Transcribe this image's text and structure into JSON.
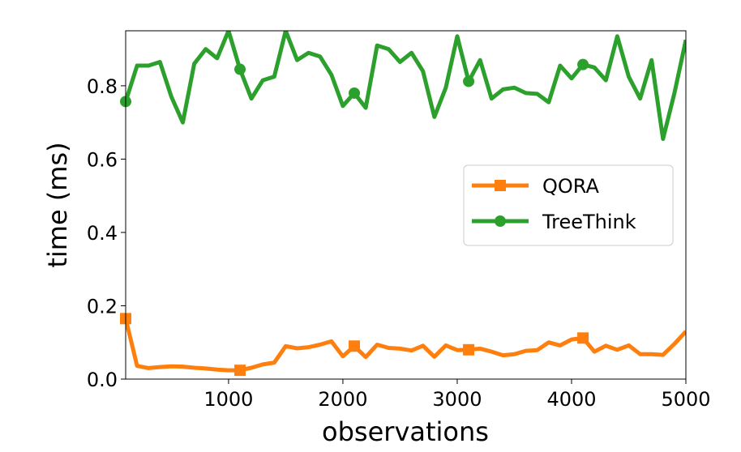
{
  "chart_data": {
    "type": "line",
    "xlabel": "observations",
    "ylabel": "time (ms)",
    "xlim": [
      100,
      5000
    ],
    "ylim": [
      0.0,
      0.95
    ],
    "xticks": [
      1000,
      2000,
      3000,
      4000,
      5000
    ],
    "xtick_labels": [
      "1000",
      "2000",
      "3000",
      "4000",
      "5000"
    ],
    "yticks": [
      0.0,
      0.2,
      0.4,
      0.6,
      0.8
    ],
    "ytick_labels": [
      "0.0",
      "0.2",
      "0.4",
      "0.6",
      "0.8"
    ],
    "grid": false,
    "legend_position": "center-right",
    "x": [
      100,
      200,
      300,
      400,
      500,
      600,
      700,
      800,
      900,
      1000,
      1100,
      1200,
      1300,
      1400,
      1500,
      1600,
      1700,
      1800,
      1900,
      2000,
      2100,
      2200,
      2300,
      2400,
      2500,
      2600,
      2700,
      2800,
      2900,
      3000,
      3100,
      3200,
      3300,
      3400,
      3500,
      3600,
      3700,
      3800,
      3900,
      4000,
      4100,
      4200,
      4300,
      4400,
      4500,
      4600,
      4700,
      4800,
      4900,
      5000
    ],
    "series": [
      {
        "name": "QORA",
        "color": "#ff7f0e",
        "marker": "square",
        "marker_every": 10,
        "values": [
          0.165,
          0.036,
          0.03,
          0.033,
          0.035,
          0.034,
          0.031,
          0.029,
          0.026,
          0.024,
          0.024,
          0.031,
          0.04,
          0.045,
          0.09,
          0.084,
          0.087,
          0.094,
          0.103,
          0.062,
          0.09,
          0.06,
          0.094,
          0.085,
          0.083,
          0.078,
          0.091,
          0.061,
          0.092,
          0.079,
          0.08,
          0.083,
          0.075,
          0.065,
          0.068,
          0.077,
          0.079,
          0.1,
          0.092,
          0.108,
          0.112,
          0.075,
          0.091,
          0.08,
          0.092,
          0.068,
          0.068,
          0.066,
          0.096,
          0.13
        ]
      },
      {
        "name": "TreeThink",
        "color": "#2ca02c",
        "marker": "circle",
        "marker_every": 10,
        "values": [
          0.757,
          0.855,
          0.855,
          0.865,
          0.77,
          0.7,
          0.86,
          0.9,
          0.875,
          0.95,
          0.845,
          0.765,
          0.815,
          0.825,
          0.95,
          0.87,
          0.89,
          0.88,
          0.83,
          0.745,
          0.78,
          0.74,
          0.91,
          0.9,
          0.865,
          0.89,
          0.84,
          0.715,
          0.795,
          0.935,
          0.812,
          0.87,
          0.765,
          0.79,
          0.795,
          0.78,
          0.778,
          0.755,
          0.855,
          0.82,
          0.858,
          0.85,
          0.815,
          0.935,
          0.825,
          0.765,
          0.87,
          0.655,
          0.78,
          0.925
        ]
      }
    ]
  }
}
